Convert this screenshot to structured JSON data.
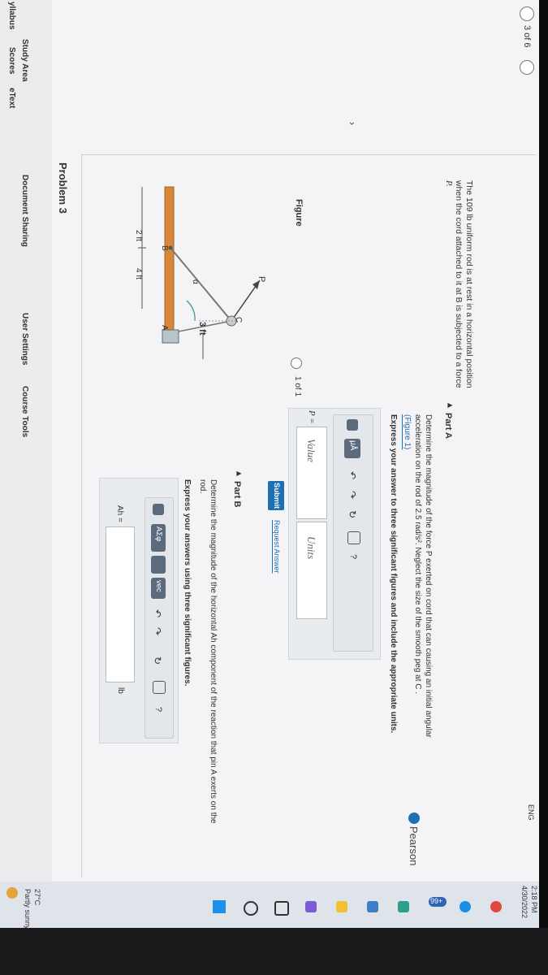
{
  "sidebar": [
    "yllabus",
    "Scores",
    "eText",
    "Study Area",
    "Document Sharing",
    "User Settings",
    "Course Tools"
  ],
  "header": {
    "title": "Problem 3",
    "pager": "3 of 6"
  },
  "problem": {
    "text_lines": [
      "The 109 lb uniform rod is at rest in a horizontal position",
      "when the cord attached to it at B is subjected to a force",
      "P."
    ],
    "figure_label": "Figure",
    "figure_pager": "1 of 1",
    "figure_labels": {
      "p": "P",
      "c": "C",
      "alpha": "α",
      "height": "3 ft",
      "b": "B",
      "a": "A",
      "left_length": "2 ft",
      "right_length": "4 ft"
    }
  },
  "part_a": {
    "title": "Part A",
    "question_lines": [
      "Determine the magnitude of the force P exerted on cord that can causing an initial angular",
      "acceleration on the rod of 2.5 rad/s². Neglect the size of the smooth peg at C .",
      "(Figure 1)"
    ],
    "instruction": "Express your answer to three significant figures and include the appropriate units.",
    "toolbar": {
      "units": "μÅ",
      "help": "?"
    },
    "answer_label": "P =",
    "value_placeholder": "Value",
    "units_placeholder": "Units",
    "submit": "Submit",
    "request": "Request Answer"
  },
  "part_b": {
    "title": "Part B",
    "question_lines": [
      "Determine the magnitude of the horizontal Ah component of the reaction that pin A exerts on the",
      "rod."
    ],
    "instruction": "Express your answers using three significant figures.",
    "toolbar": {
      "greek": "ΑΣφ",
      "vector": "vec",
      "help": "?"
    },
    "answer_label": "Ah =",
    "unit": "lb"
  },
  "footer": "Pearson",
  "taskbar": {
    "temperature": "27°C",
    "weather": "Partly sunny",
    "badge": "99+",
    "language": "ENG",
    "time": "2:18 PM",
    "date": "4/30/2022"
  }
}
